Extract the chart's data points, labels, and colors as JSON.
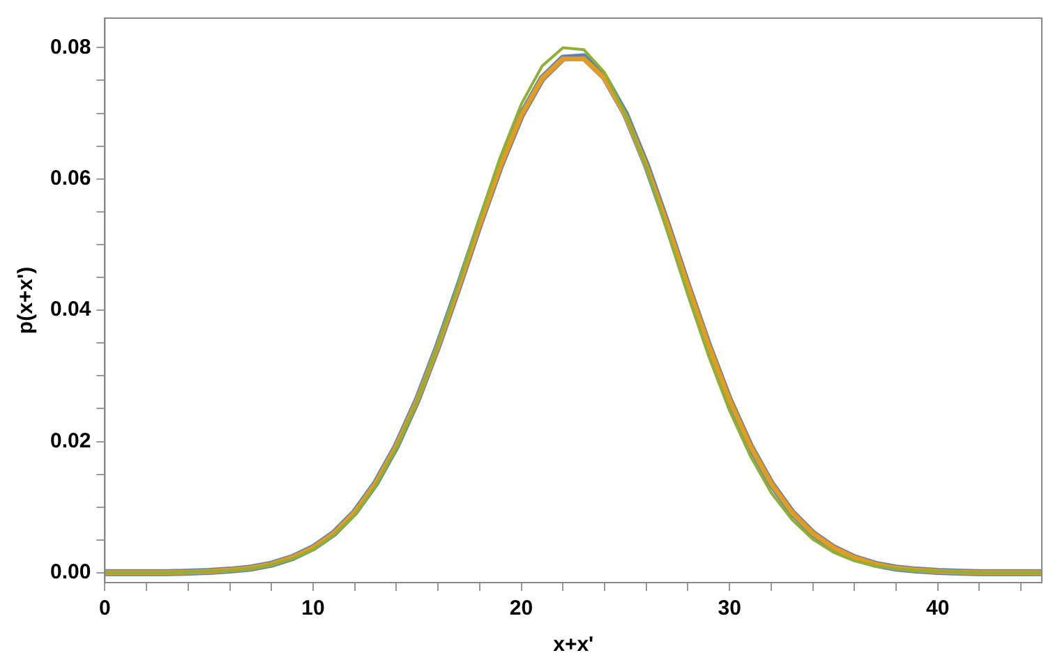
{
  "chart_data": {
    "type": "line",
    "xlabel": "x+x'",
    "ylabel": "p(x+x')",
    "x": [
      0,
      1,
      2,
      3,
      4,
      5,
      6,
      7,
      8,
      9,
      10,
      11,
      12,
      13,
      14,
      15,
      16,
      17,
      18,
      19,
      20,
      21,
      22,
      23,
      24,
      25,
      26,
      27,
      28,
      29,
      30,
      31,
      32,
      33,
      34,
      35,
      36,
      37,
      38,
      39,
      40,
      41,
      42,
      43,
      44,
      45
    ],
    "series": [
      {
        "color": "#5e81b5",
        "values": [
          0,
          0,
          0,
          0,
          0.0001,
          0.0002,
          0.0004,
          0.0007,
          0.0013,
          0.0023,
          0.0038,
          0.006,
          0.0092,
          0.0136,
          0.0193,
          0.0263,
          0.0346,
          0.0437,
          0.0531,
          0.062,
          0.0697,
          0.0753,
          0.0784,
          0.0786,
          0.0755,
          0.0699,
          0.0622,
          0.0532,
          0.0437,
          0.0346,
          0.0263,
          0.0193,
          0.0136,
          0.0092,
          0.006,
          0.0038,
          0.0023,
          0.0013,
          0.0007,
          0.0004,
          0.0002,
          0.0001,
          0,
          0,
          0,
          0
        ]
      },
      {
        "color": "#e19c24",
        "values": [
          0,
          0,
          0,
          0,
          0.0001,
          0.0002,
          0.0004,
          0.0007,
          0.0013,
          0.0023,
          0.0038,
          0.006,
          0.0092,
          0.0136,
          0.0193,
          0.0263,
          0.0346,
          0.0437,
          0.0531,
          0.062,
          0.0697,
          0.0753,
          0.0783,
          0.0783,
          0.0753,
          0.0697,
          0.062,
          0.0531,
          0.0437,
          0.0346,
          0.0263,
          0.0193,
          0.0136,
          0.0092,
          0.006,
          0.0038,
          0.0023,
          0.0013,
          0.0007,
          0.0004,
          0.0002,
          0.0001,
          0,
          0,
          0,
          0
        ]
      },
      {
        "color": "#8fb032",
        "values": [
          0,
          0,
          0,
          0,
          0.0001,
          0.0002,
          0.0003,
          0.0006,
          0.0012,
          0.0021,
          0.0035,
          0.0057,
          0.0088,
          0.0132,
          0.019,
          0.0262,
          0.0348,
          0.0443,
          0.0541,
          0.0634,
          0.0714,
          0.0772,
          0.08,
          0.0797,
          0.0762,
          0.0699,
          0.0617,
          0.0521,
          0.0423,
          0.033,
          0.0247,
          0.0178,
          0.0122,
          0.0081,
          0.0051,
          0.0031,
          0.0018,
          0.001,
          0.0006,
          0.0003,
          0.0002,
          0.0001,
          0,
          0,
          0,
          0
        ]
      }
    ],
    "xlim": [
      0,
      45
    ],
    "xticks": [
      0,
      {
        "value": 2,
        "label": null
      },
      {
        "value": 4,
        "label": null
      },
      {
        "value": 6,
        "label": null
      },
      {
        "value": 8,
        "label": null
      },
      10,
      {
        "value": 12,
        "label": null
      },
      {
        "value": 14,
        "label": null
      },
      {
        "value": 16,
        "label": null
      },
      {
        "value": 18,
        "label": null
      },
      20,
      {
        "value": 22,
        "label": null
      },
      {
        "value": 24,
        "label": null
      },
      {
        "value": 26,
        "label": null
      },
      {
        "value": 28,
        "label": null
      },
      30,
      {
        "value": 32,
        "label": null
      },
      {
        "value": 34,
        "label": null
      },
      {
        "value": 36,
        "label": null
      },
      {
        "value": 38,
        "label": null
      },
      40,
      {
        "value": 42,
        "label": null
      },
      {
        "value": 44,
        "label": null
      }
    ],
    "ylim": [
      -0.0015,
      0.0845
    ],
    "yticks": [
      {
        "value": 0,
        "label": "0.00"
      },
      {
        "value": 0.005,
        "label": null
      },
      {
        "value": 0.01,
        "label": null
      },
      {
        "value": 0.015,
        "label": null
      },
      {
        "value": 0.02,
        "label": "0.02"
      },
      {
        "value": 0.025,
        "label": null
      },
      {
        "value": 0.03,
        "label": null
      },
      {
        "value": 0.035,
        "label": null
      },
      {
        "value": 0.04,
        "label": "0.04"
      },
      {
        "value": 0.045,
        "label": null
      },
      {
        "value": 0.05,
        "label": null
      },
      {
        "value": 0.055,
        "label": null
      },
      {
        "value": 0.06,
        "label": "0.06"
      },
      {
        "value": 0.065,
        "label": null
      },
      {
        "value": 0.07,
        "label": null
      },
      {
        "value": 0.075,
        "label": null
      },
      {
        "value": 0.08,
        "label": "0.08"
      }
    ],
    "grid": false,
    "legend": false,
    "marker": "none",
    "line_style": "solid"
  }
}
